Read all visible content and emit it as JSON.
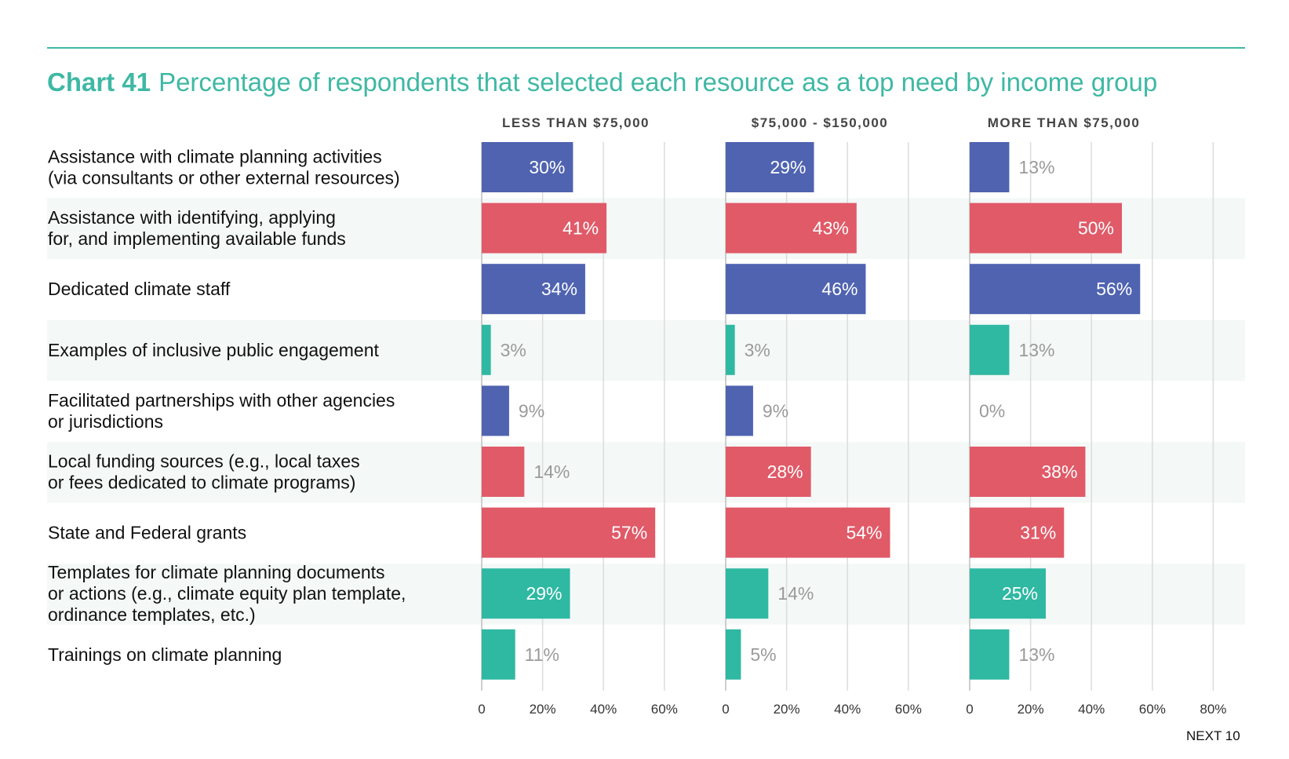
{
  "header": {
    "chart_number": "Chart 41",
    "title": "Percentage of respondents that selected each resource as a top need by income group"
  },
  "footer": {
    "label": "NEXT 10"
  },
  "colors": {
    "accent": "#3fb8a4",
    "blue": "#4f63b0",
    "red": "#e05a68",
    "teal": "#2fb8a2",
    "stripe": "#f4f8f7"
  },
  "chart_data": {
    "type": "bar",
    "orientation": "horizontal",
    "categories": [
      [
        "Assistance with climate planning activities",
        "(via consultants or other external resources)"
      ],
      [
        "Assistance with identifying, applying",
        "for, and implementing available funds"
      ],
      [
        "Dedicated climate staff"
      ],
      [
        "Examples of inclusive public engagement"
      ],
      [
        "Facilitated partnerships with other agencies",
        "or jurisdictions"
      ],
      [
        "Local funding sources (e.g., local taxes",
        "or fees dedicated to climate programs)"
      ],
      [
        "State and Federal grants"
      ],
      [
        "Templates for climate planning documents",
        "or actions (e.g., climate equity plan template,",
        "ordinance templates, etc.)"
      ],
      [
        "Trainings on climate planning"
      ]
    ],
    "bar_colors": [
      "blue",
      "red",
      "blue",
      "teal",
      "blue",
      "red",
      "red",
      "teal",
      "teal"
    ],
    "panels": [
      {
        "name": "LESS THAN $75,000",
        "values": [
          30,
          41,
          34,
          3,
          9,
          14,
          57,
          29,
          11
        ],
        "labels": [
          "30%",
          "41%",
          "34%",
          "3%",
          "9%",
          "14%",
          "57%",
          "29%",
          "11%"
        ],
        "ticks": [
          "0",
          "20%",
          "40%",
          "60%"
        ]
      },
      {
        "name": "$75,000 - $150,000",
        "values": [
          29,
          43,
          46,
          3,
          9,
          28,
          54,
          14,
          5
        ],
        "labels": [
          "29%",
          "43%",
          "46%",
          "3%",
          "9%",
          "28%",
          "54%",
          "14%",
          "5%"
        ],
        "ticks": [
          "0",
          "20%",
          "40%",
          "60%"
        ]
      },
      {
        "name": "MORE THAN $75,000",
        "values": [
          13,
          50,
          56,
          13,
          0,
          38,
          31,
          25,
          13
        ],
        "labels": [
          "13%",
          "50%",
          "56%",
          "13%",
          "0%",
          "38%",
          "31%",
          "25%",
          "13%"
        ],
        "ticks": [
          "0",
          "20%",
          "40%",
          "60%",
          "80%"
        ]
      }
    ],
    "xlim": [
      0,
      80
    ],
    "grid": true
  }
}
